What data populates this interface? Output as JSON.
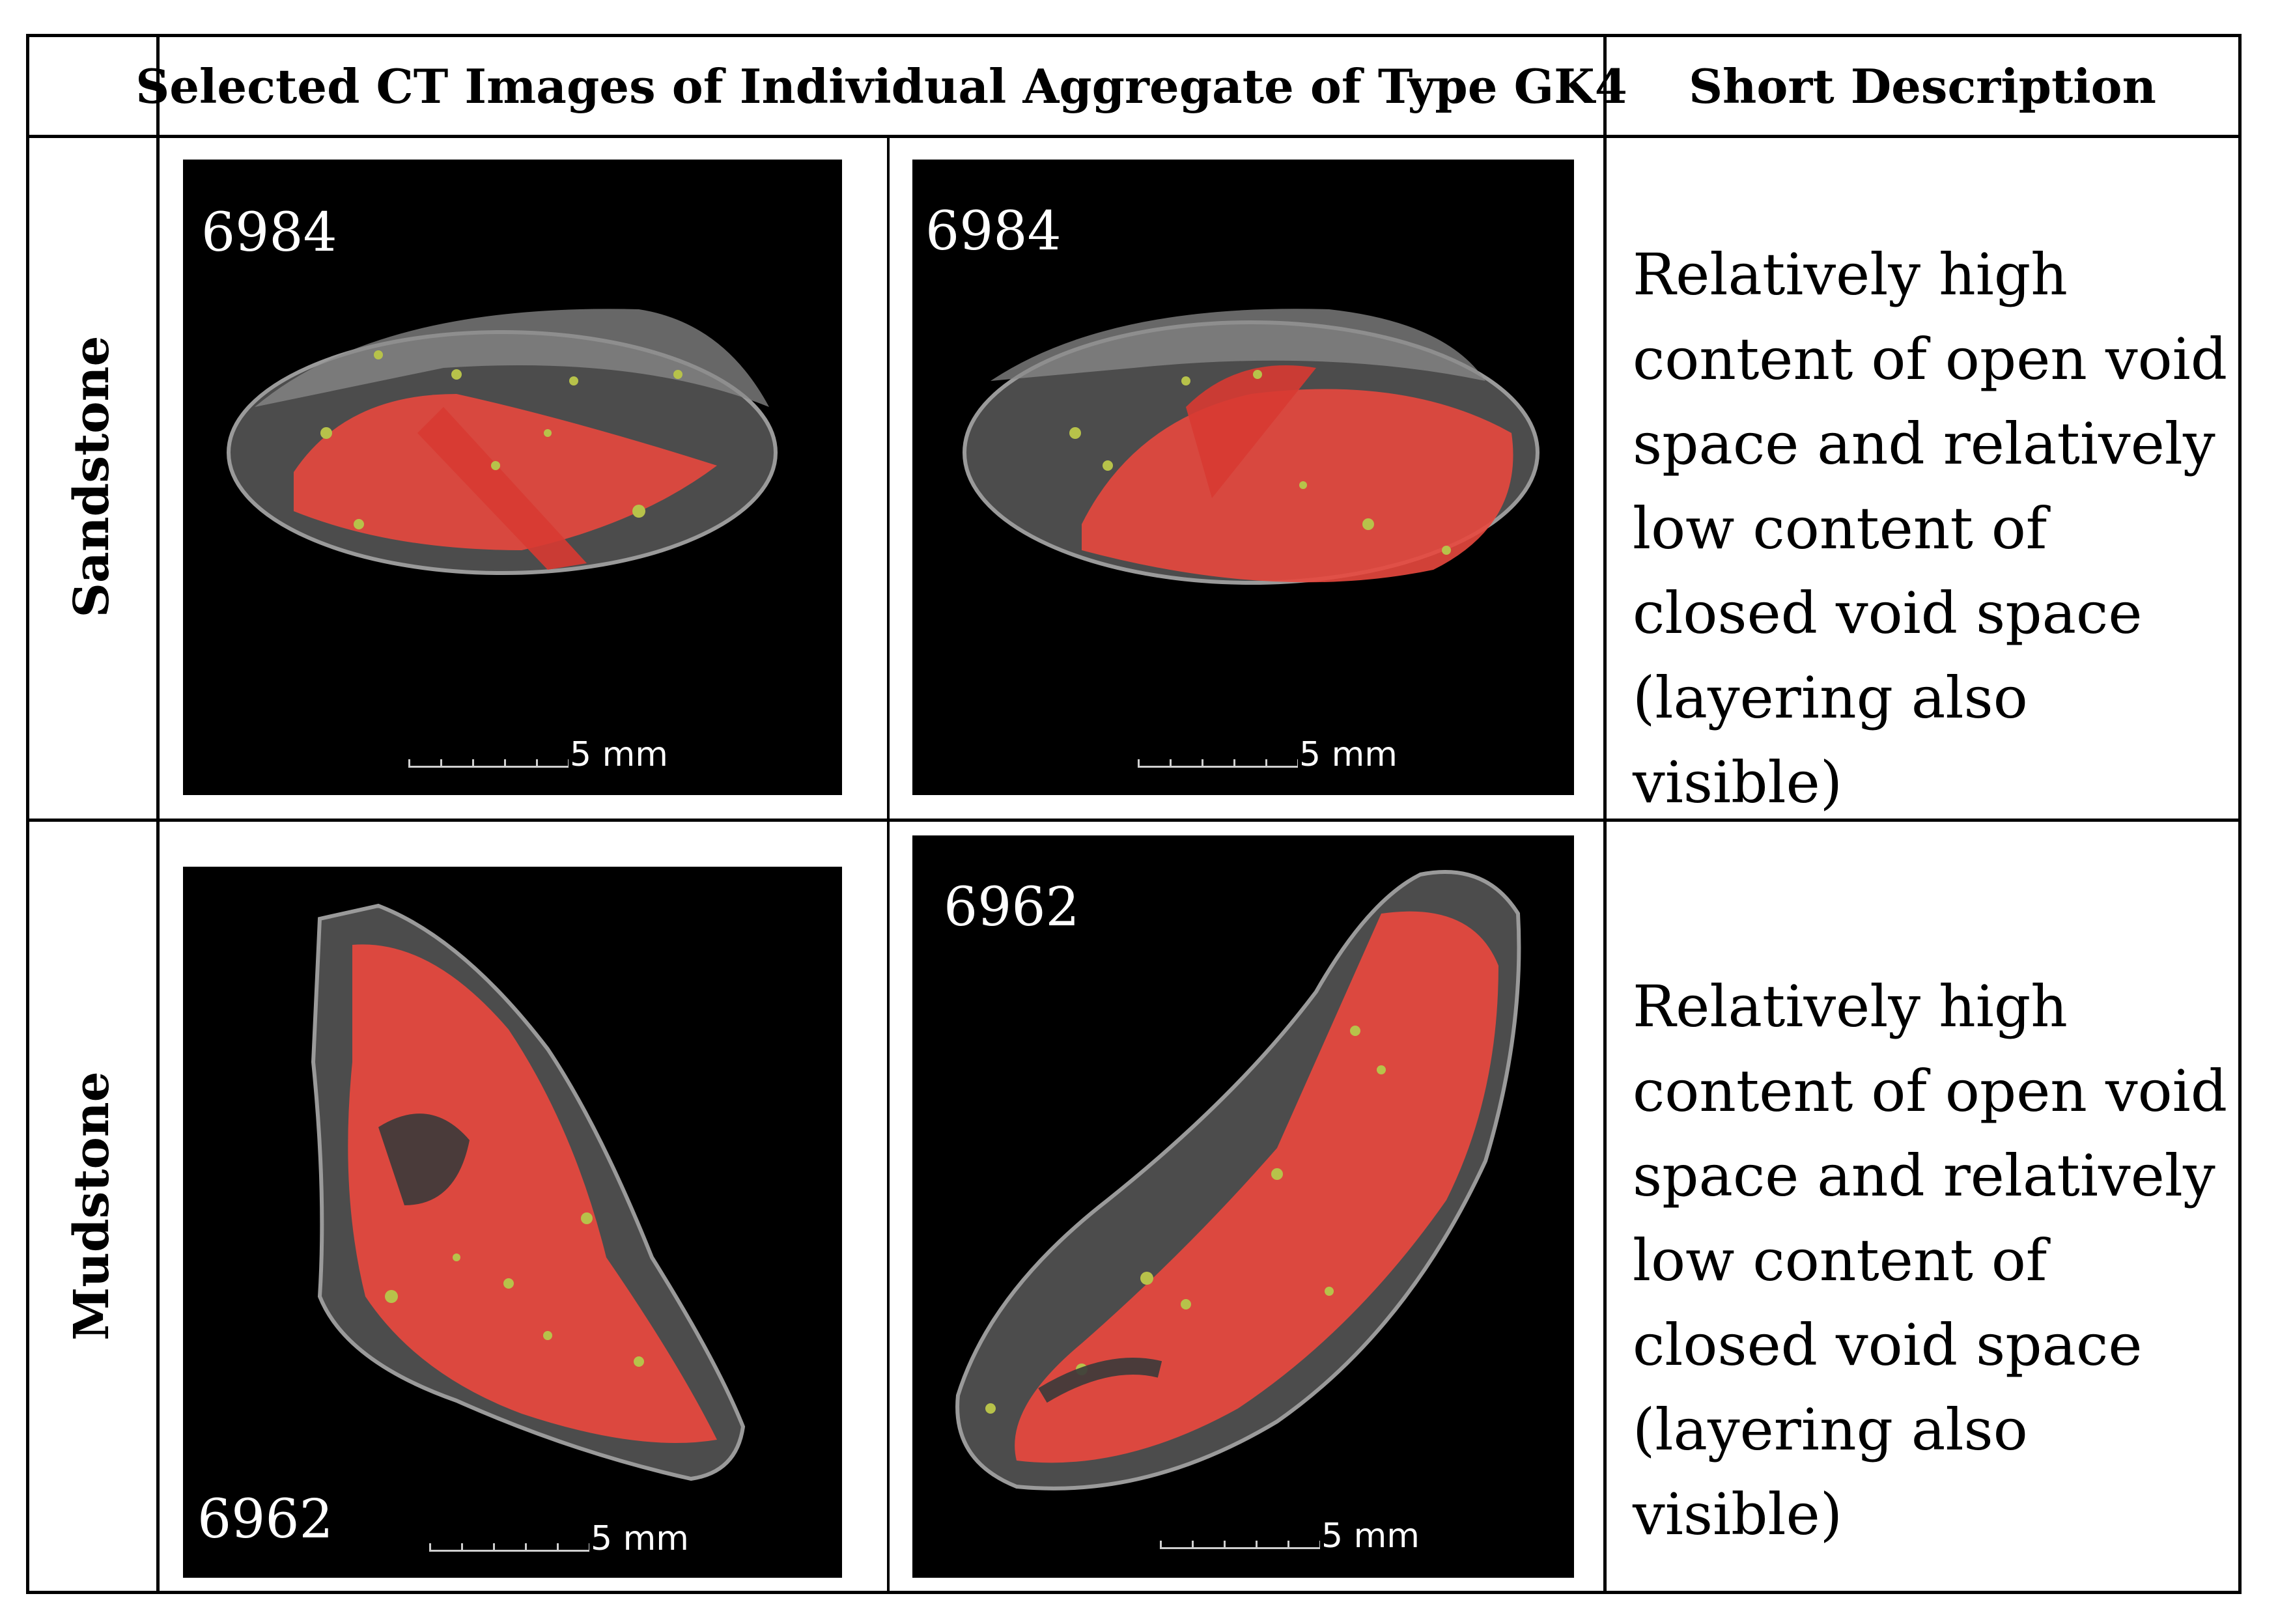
{
  "table": {
    "header": {
      "images_column": "Selected CT Images of Individual Aggregate of Type GK4",
      "description_column": "Short Description"
    },
    "rows": [
      {
        "label": "Sandstone",
        "images": [
          {
            "id_label": "6984",
            "scale_label": "5 mm"
          },
          {
            "id_label": "6984",
            "scale_label": "5 mm"
          }
        ],
        "description": "Relatively high content of open void space and relatively low content of closed void space (layering also visible)"
      },
      {
        "label": "Mudstone",
        "images": [
          {
            "id_label": "6962",
            "scale_label": "5 mm"
          },
          {
            "id_label": "6962",
            "scale_label": "5 mm"
          }
        ],
        "description": "Relatively high content of open void space and relatively low content of closed void space (layering also visible)"
      }
    ]
  },
  "colors": {
    "open_void": "#e8483e",
    "closed_void": "#b7c24a",
    "aggregate": "#4a4a4a",
    "background": "#000000"
  }
}
